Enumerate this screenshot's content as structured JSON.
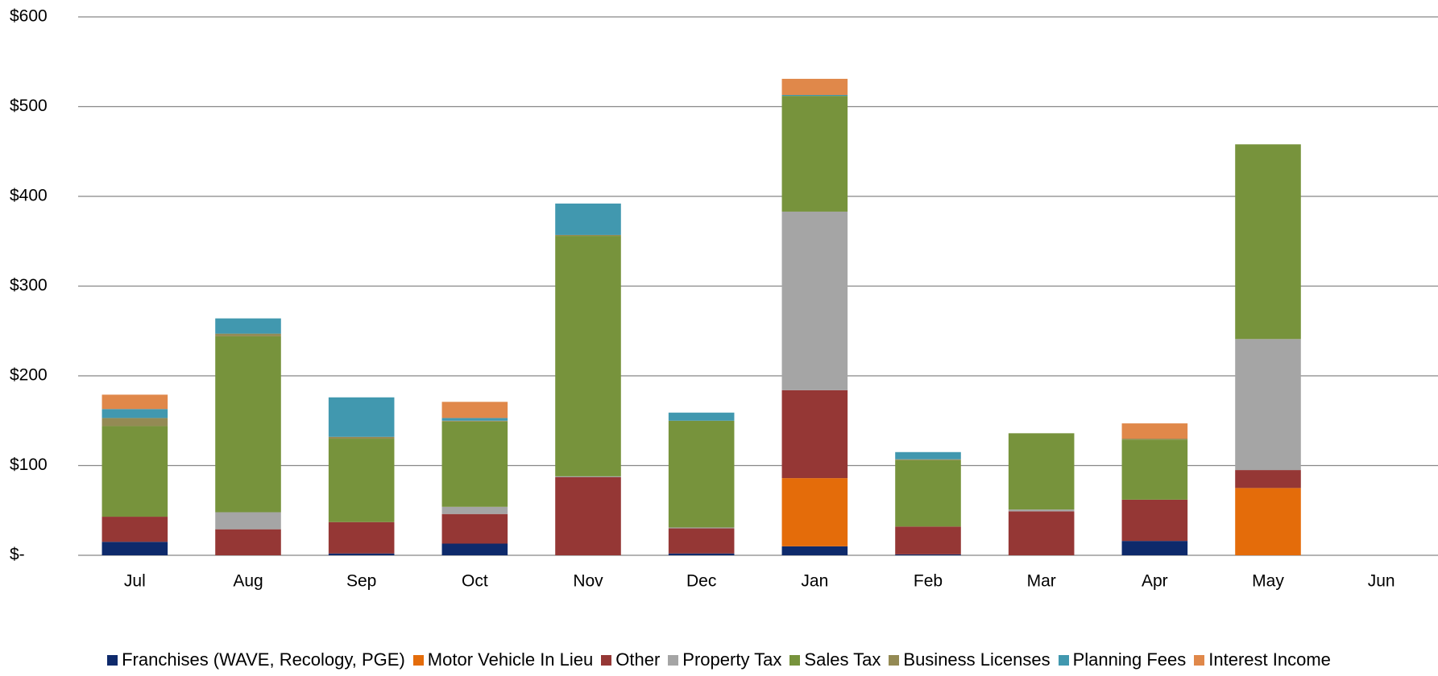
{
  "chart_data": {
    "type": "stacked-bar",
    "categories": [
      "Jul",
      "Aug",
      "Sep",
      "Oct",
      "Nov",
      "Dec",
      "Jan",
      "Feb",
      "Mar",
      "Apr",
      "May",
      "Jun"
    ],
    "series": [
      {
        "name": "Franchises (WAVE, Recology, PGE)",
        "color": "#0e2a6b",
        "values": [
          15,
          0,
          2,
          13,
          0,
          2,
          10,
          1,
          0,
          16,
          0,
          0
        ]
      },
      {
        "name": "Motor Vehicle In Lieu",
        "color": "#e46c0a",
        "values": [
          0,
          0,
          0,
          0,
          0,
          0,
          76,
          0,
          0,
          0,
          75,
          0
        ]
      },
      {
        "name": "Other",
        "color": "#953735",
        "values": [
          28,
          29,
          35,
          33,
          87,
          28,
          98,
          31,
          49,
          46,
          20,
          0
        ]
      },
      {
        "name": "Property Tax",
        "color": "#a5a5a5",
        "values": [
          0,
          19,
          0,
          8,
          1,
          1,
          199,
          0,
          2,
          0,
          146,
          0
        ]
      },
      {
        "name": "Sales Tax",
        "color": "#77933c",
        "values": [
          101,
          196,
          93,
          95,
          268,
          119,
          129,
          74,
          85,
          67,
          217,
          0
        ]
      },
      {
        "name": "Business Licenses",
        "color": "#948a54",
        "values": [
          9,
          3,
          2,
          1,
          1,
          0,
          0,
          1,
          0,
          1,
          0,
          0
        ]
      },
      {
        "name": "Planning Fees",
        "color": "#4198af",
        "values": [
          10,
          17,
          44,
          3,
          35,
          9,
          1,
          8,
          0,
          0,
          0,
          0
        ]
      },
      {
        "name": "Interest Income",
        "color": "#e0884a",
        "values": [
          16,
          0,
          0,
          18,
          0,
          0,
          18,
          0,
          0,
          17,
          0,
          0
        ]
      }
    ],
    "ylim": [
      0,
      600
    ],
    "yticks": [
      {
        "value": 0,
        "label": "$-"
      },
      {
        "value": 100,
        "label": "$100"
      },
      {
        "value": 200,
        "label": "$200"
      },
      {
        "value": 300,
        "label": "$300"
      },
      {
        "value": 400,
        "label": "$400"
      },
      {
        "value": 500,
        "label": "$500"
      },
      {
        "value": 600,
        "label": "$600"
      }
    ],
    "grid": true,
    "legend": "bottom"
  }
}
